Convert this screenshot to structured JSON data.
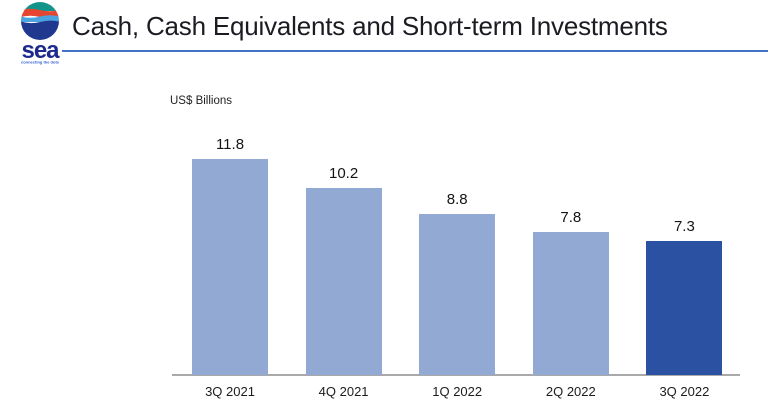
{
  "logo": {
    "wordmark": "sea",
    "tagline": "connecting the dots"
  },
  "header": {
    "title": "Cash, Cash Equivalents and Short-term Investments"
  },
  "chart_data": {
    "type": "bar",
    "title": "Cash, Cash Equivalents and Short-term Investments",
    "unit_label": "US$ Billions",
    "categories": [
      "3Q 2021",
      "4Q 2021",
      "1Q 2022",
      "2Q 2022",
      "3Q 2022"
    ],
    "values": [
      11.8,
      10.2,
      8.8,
      7.8,
      7.3
    ],
    "data_labels": [
      "11.8",
      "10.2",
      "8.8",
      "7.8",
      "7.3"
    ],
    "highlight_index": 4,
    "grid": "off",
    "legend": "none",
    "xlabel": "",
    "ylabel": "US$ Billions"
  },
  "colors": {
    "bar_default": "#92A9D4",
    "bar_highlight": "#2B52A2",
    "title_underline": "#4472C4",
    "axis_line": "#A9A9A9",
    "logo_wordmark": "#1B2A8C",
    "logo_tagline": "#2E5BD0",
    "logo_band_teal": "#13948A",
    "logo_band_red": "#E6452F",
    "logo_band_lightblue": "#4BA4DE",
    "logo_band_darkblue": "#20398F"
  }
}
